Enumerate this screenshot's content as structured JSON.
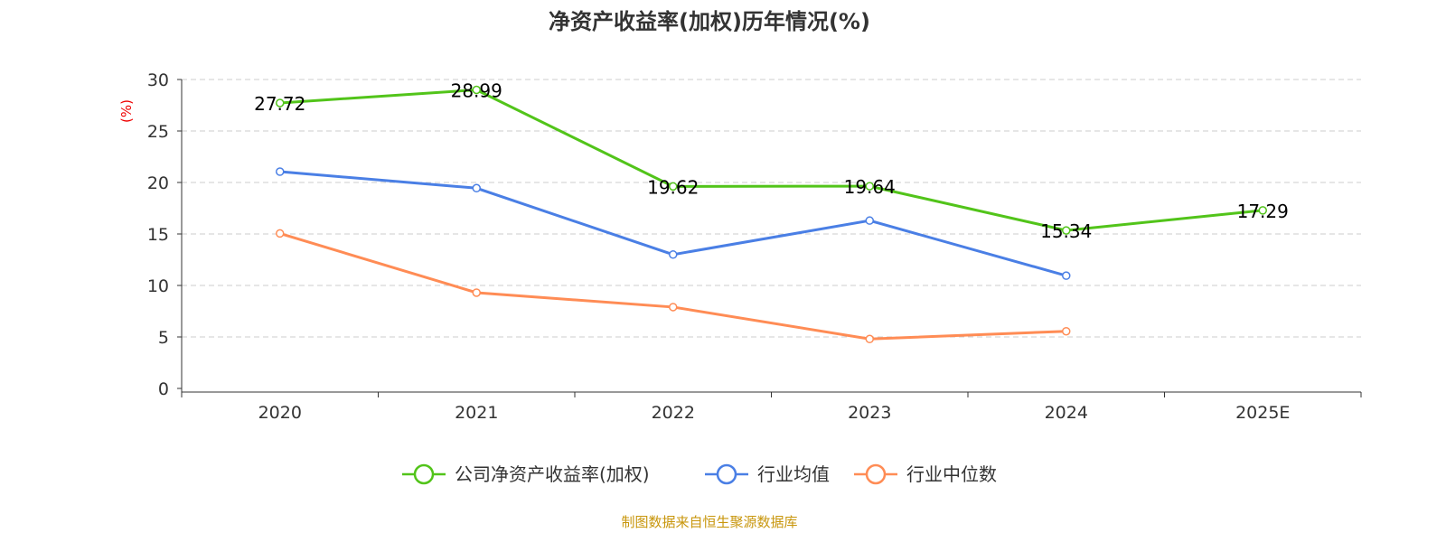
{
  "chart_data": {
    "type": "line",
    "title": "净资产收益率(加权)历年情况(%)",
    "ylabel": "(%)",
    "xlabel": "",
    "categories": [
      "2020",
      "2021",
      "2022",
      "2023",
      "2024",
      "2025E"
    ],
    "ylim": [
      0,
      30
    ],
    "yticks": [
      0,
      5,
      10,
      15,
      20,
      25,
      30
    ],
    "grid": true,
    "legend_position": "bottom",
    "series": [
      {
        "name": "公司净资产收益率(加权)",
        "color": "#52c41a",
        "values": [
          27.72,
          28.99,
          19.62,
          19.64,
          15.34,
          17.29
        ],
        "labels": [
          "27.72",
          "28.99",
          "19.62",
          "19.64",
          "15.34",
          "17.29"
        ]
      },
      {
        "name": "行业均值",
        "color": "#4a7fe5",
        "values": [
          21.05,
          19.45,
          13.0,
          16.3,
          10.95,
          null
        ]
      },
      {
        "name": "行业中位数",
        "color": "#ff8c55",
        "values": [
          15.05,
          9.3,
          7.9,
          4.8,
          5.55,
          null
        ]
      }
    ],
    "source": "制图数据来自恒生聚源数据库"
  }
}
